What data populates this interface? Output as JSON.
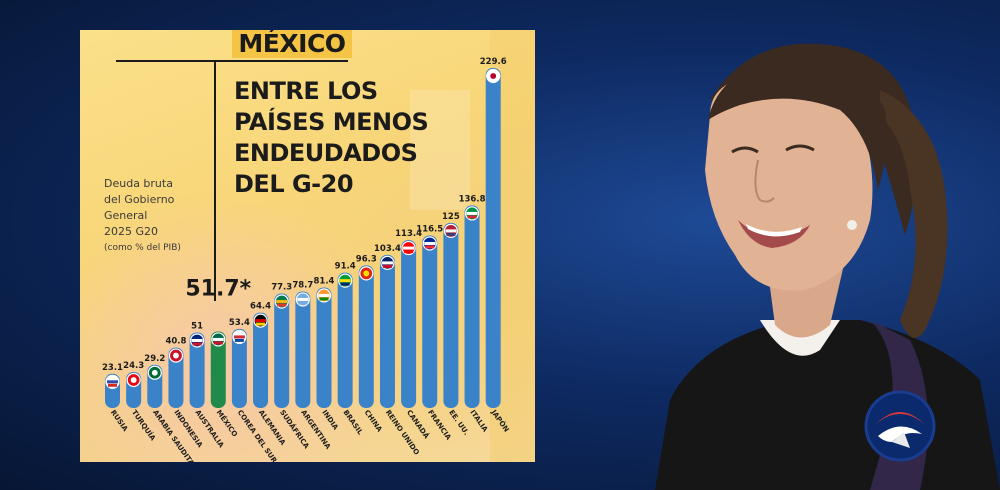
{
  "infographic": {
    "country_title": "MÉXICO",
    "headline_lines": [
      "ENTRE LOS",
      "PAÍSES MENOS",
      "ENDEUDADOS",
      "DEL G-20"
    ],
    "caption_lines": [
      "Deuda bruta",
      "del Gobierno",
      "General",
      "2025 G20"
    ],
    "caption_unit": "(como % del PIB)",
    "highlight_value": "51.7*"
  },
  "chart_data": {
    "type": "bar",
    "title": "ENTRE LOS PAÍSES MENOS ENDEUDADOS DEL G-20",
    "ylabel": "Deuda bruta del Gobierno General 2025 G20 (como % del PIB)",
    "categories": [
      "RUSIA",
      "TURQUÍA",
      "ARABIA SAUDITA",
      "INDONESIA",
      "AUSTRALIA",
      "MÉXICO",
      "COREA DEL SUR",
      "ALEMANIA",
      "SUDÁFRICA",
      "ARGENTINA",
      "INDIA",
      "BRASIL",
      "CHINA",
      "REINO UNIDO",
      "CANADÁ",
      "FRANCIA",
      "EE. UU.",
      "ITALIA",
      "JAPÓN"
    ],
    "values": [
      23.1,
      24.3,
      29.2,
      40.8,
      51,
      51.7,
      53.4,
      64.4,
      77.3,
      78.7,
      81.4,
      91.4,
      96.3,
      103.4,
      113.4,
      116.5,
      125,
      136.8,
      229.6
    ],
    "labels": [
      "23.1",
      "24.3",
      "29.2",
      "40.8",
      "51",
      "",
      "53.4",
      "64.4",
      "77.3",
      "78.7",
      "81.4",
      "91.4",
      "96.3",
      "103.4",
      "113.4",
      "116.5",
      "125",
      "136.8",
      "229.6"
    ],
    "highlight_index": 5,
    "ylim": [
      0,
      235
    ],
    "colors": {
      "bar": "#3a83c8",
      "highlight": "#1f8a4a"
    },
    "flags": [
      "russia-flag",
      "turkey-flag",
      "saudi-flag",
      "indonesia-flag",
      "australia-flag",
      "mexico-flag",
      "korea-flag",
      "germany-flag",
      "southafrica-flag",
      "argentina-flag",
      "india-flag",
      "brazil-flag",
      "china-flag",
      "uk-flag",
      "canada-flag",
      "france-flag",
      "usa-flag",
      "italy-flag",
      "japan-flag"
    ]
  },
  "photo": {
    "subject": "smiling woman portrait"
  },
  "logo": {
    "name": "bird-globe-logo"
  }
}
